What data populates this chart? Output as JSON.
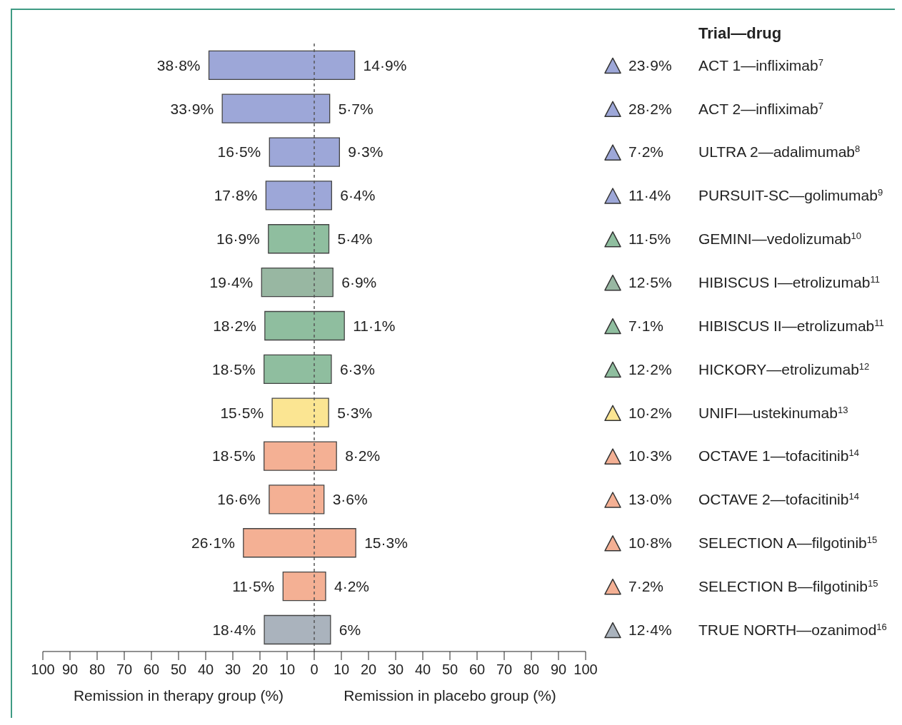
{
  "chart_data": {
    "type": "bar",
    "orientation": "horizontal",
    "ylabel": "Trial—drug",
    "xlabel": "Remission in therapy group (%)",
    "categories": [
      "ACT 1—infliximab$^{7}$",
      "ACT 2—infliximab$^{7}$",
      "ULTRA 2—adalimumab$^{8}$",
      "PURSUIT-SC—golimumab$^{9}$",
      "GEMINI—vedolizumab$^{10}$",
      "HIBISCUS I—etrolizumab$^{11}$",
      "HIBISCUS II—etrolizumab$^{11}$",
      "HICKORY—etrolizumab$^{12}$",
      "UNIFI—ustekinumab$^{13}$",
      "OCTAVE 1—tofacitinib$^{14}$",
      "OCTAVE 2—tofacitinib$^{14}$",
      "SELECTION A—filgotinib$^{15}$",
      "SELECTION B—filgotinib$^{15}$",
      "TRUE NORTH—ozanimod$^{16}$"
    ],
    "series": [
      {
        "values": [
          38.8,
          33.9,
          16.5,
          17.8,
          16.9,
          19.4,
          18.2,
          18.5,
          15.5,
          18.5,
          16.6,
          26.1,
          11.5,
          18.4
        ],
        "base": [
          -38.8,
          -33.9,
          -16.5,
          -17.8,
          -16.9,
          -19.4,
          -18.2,
          -18.5,
          -15.5,
          -18.5,
          -16.6,
          -26.1,
          -11.5,
          -18.4
        ],
        "colors": [
          "#9da7d8",
          "#9da7d8",
          "#9da7d8",
          "#9da7d8",
          "#8fbe9f",
          "#98b7a2",
          "#8fbe9f",
          "#8fbe9f",
          "#fbe592",
          "#f4b094",
          "#f4b094",
          "#f4b094",
          "#f4b094",
          "#aab3bd"
        ]
      },
      {
        "values": [
          14.9,
          5.7,
          9.3,
          6.4,
          5.4,
          6.9,
          11.1,
          6.3,
          5.3,
          8.2,
          3.6,
          15.3,
          4.2,
          6
        ],
        "colors": [
          "#9da7d8",
          "#9da7d8",
          "#9da7d8",
          "#9da7d8",
          "#8fbe9f",
          "#98b7a2",
          "#8fbe9f",
          "#8fbe9f",
          "#fbe592",
          "#f4b094",
          "#f4b094",
          "#f4b094",
          "#f4b094",
          "#aab3bd"
        ]
      }
    ],
    "xlim": [
      -100,
      100
    ],
    "xticks": [
      {
        "value": -100,
        "label": "100"
      },
      {
        "value": -90,
        "label": "90"
      },
      {
        "value": -80,
        "label": "80"
      },
      {
        "value": -70,
        "label": "70"
      },
      {
        "value": -60,
        "label": "60"
      },
      {
        "value": -50,
        "label": "50"
      },
      {
        "value": -40,
        "label": "40"
      },
      {
        "value": -30,
        "label": "30"
      },
      {
        "value": -20,
        "label": "20"
      },
      {
        "value": -10,
        "label": "10"
      },
      0,
      10,
      20,
      30,
      40,
      50,
      60,
      70,
      80,
      90,
      100
    ],
    "ref_lines": [
      {
        "axis": "x",
        "value": 0,
        "line_style": "dashed",
        "color": "#555555"
      }
    ],
    "annotations": [
      "23·9%",
      "28·2%",
      "7·2%",
      "11·4%",
      "11·5%",
      "12·5%",
      "7·1%",
      "12·2%",
      "10·2%",
      "10·3%",
      "13·0%",
      "10·8%",
      "7·2%",
      "12·4%",
      "Remission in placebo group (%)",
      {
        "text": "38·8%",
        "x": -38.8,
        "y": "ACT 1—infliximab$^{7}$"
      },
      {
        "text": "14·9%",
        "x": 14.9,
        "y": "ACT 1—infliximab$^{7}$"
      },
      {
        "text": "33·9%",
        "x": -33.9,
        "y": "ACT 2—infliximab$^{7}$"
      },
      {
        "text": "5·7%",
        "x": 5.7,
        "y": "ACT 2—infliximab$^{7}$"
      },
      {
        "text": "16·5%",
        "x": -16.5,
        "y": "ULTRA 2—adalimumab$^{8}$"
      },
      {
        "text": "9·3%",
        "x": 9.3,
        "y": "ULTRA 2—adalimumab$^{8}$"
      },
      {
        "text": "17·8%",
        "x": -17.8,
        "y": "PURSUIT-SC—golimumab$^{9}$"
      },
      {
        "text": "6·4%",
        "x": 6.4,
        "y": "PURSUIT-SC—golimumab$^{9}$"
      },
      {
        "text": "16·9%",
        "x": -16.9,
        "y": "GEMINI—vedolizumab$^{10}$"
      },
      {
        "text": "5·4%",
        "x": 5.4,
        "y": "GEMINI—vedolizumab$^{10}$"
      },
      {
        "text": "19·4%",
        "x": -19.4,
        "y": "HIBISCUS I—etrolizumab$^{11}$"
      },
      {
        "text": "6·9%",
        "x": 6.9,
        "y": "HIBISCUS I—etrolizumab$^{11}$"
      },
      {
        "text": "18·2%",
        "x": -18.2,
        "y": "HIBISCUS II—etrolizumab$^{11}$"
      },
      {
        "text": "11·1%",
        "x": 11.1,
        "y": "HIBISCUS II—etrolizumab$^{11}$"
      },
      {
        "text": "18·5%",
        "x": -18.5,
        "y": "HICKORY—etrolizumab$^{12}$"
      },
      {
        "text": "6·3%",
        "x": 6.3,
        "y": "HICKORY—etrolizumab$^{12}$"
      },
      {
        "text": "15·5%",
        "x": -15.5,
        "y": "UNIFI—ustekinumab$^{13}$"
      },
      {
        "text": "5·3%",
        "x": 5.3,
        "y": "UNIFI—ustekinumab$^{13}$"
      },
      {
        "text": "18·5%",
        "x": -18.5,
        "y": "OCTAVE 1—tofacitinib$^{14}$"
      },
      {
        "text": "8·2%",
        "x": 8.2,
        "y": "OCTAVE 1—tofacitinib$^{14}$"
      },
      {
        "text": "16·6%",
        "x": -16.6,
        "y": "OCTAVE 2—tofacitinib$^{14}$"
      },
      {
        "text": "3·6%",
        "x": 3.6,
        "y": "OCTAVE 2—tofacitinib$^{14}$"
      },
      {
        "text": "26·1%",
        "x": -26.1,
        "y": "SELECTION A—filgotinib$^{15}$"
      },
      {
        "text": "15·3%",
        "x": 15.3,
        "y": "SELECTION A—filgotinib$^{15}$"
      },
      {
        "text": "11·5%",
        "x": -11.5,
        "y": "SELECTION B—filgotinib$^{15}$"
      },
      {
        "text": "4·2%",
        "x": 4.2,
        "y": "SELECTION B—filgotinib$^{15}$"
      },
      {
        "text": "18·4%",
        "x": -18.4,
        "y": "TRUE NORTH—ozanimod$^{16}$"
      },
      {
        "text": "6%",
        "x": 6,
        "y": "TRUE NORTH—ozanimod$^{16}$"
      }
    ]
  }
}
